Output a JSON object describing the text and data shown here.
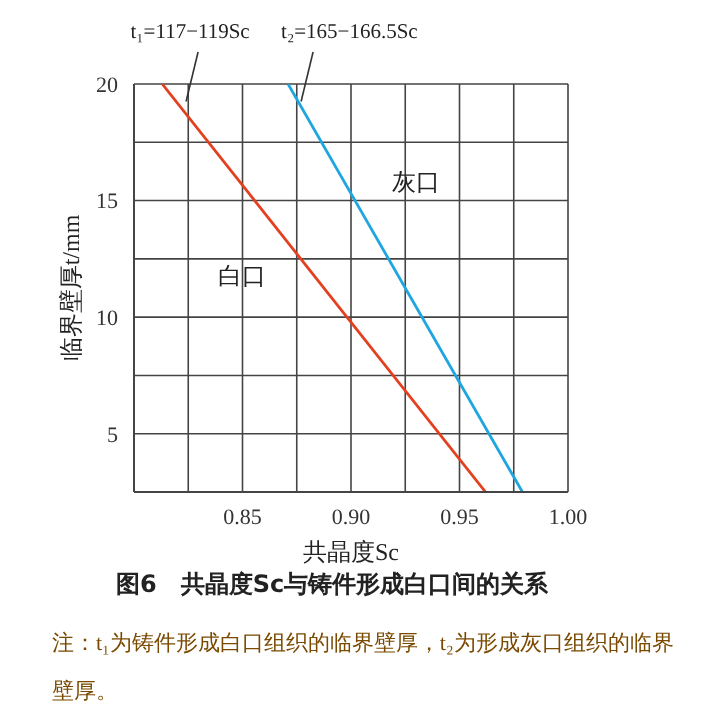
{
  "chart_data": {
    "type": "line",
    "title": "图6　共晶度Sc与铸件形成白口间的关系",
    "xlabel": "共晶度Sc",
    "ylabel": "临界壁厚t/mm",
    "annotations": [
      {
        "text": "t₁=117−119Sc",
        "x": 0.824,
        "y": 19.25
      },
      {
        "text": "t₂=165−166.5Sc",
        "x": 0.877,
        "y": 19.25
      },
      "注：t₁为铸件形成白口组织的临界壁厚，t₂为形成灰口组织的临界壁厚。"
    ],
    "series": [
      {
        "name": "白口",
        "color": "#e2401f",
        "x": [
          0.813,
          0.962
        ],
        "values": [
          20,
          2.5
        ]
      },
      {
        "name": "灰口",
        "color": "#1fa6e0",
        "x": [
          0.871,
          0.979
        ],
        "values": [
          20,
          2.5
        ]
      }
    ],
    "xlim": [
      0.8,
      1.0
    ],
    "xticks": [
      {
        "value": 0.8,
        "label": null
      },
      {
        "value": 0.825,
        "label": null
      },
      {
        "value": 0.85,
        "label": "0.85"
      },
      {
        "value": 0.875,
        "label": null
      },
      {
        "value": 0.9,
        "label": "0.90"
      },
      {
        "value": 0.925,
        "label": null
      },
      {
        "value": 0.95,
        "label": "0.95"
      },
      {
        "value": 0.975,
        "label": null
      },
      {
        "value": 1.0,
        "label": "1.00"
      }
    ],
    "ylim": [
      2.5,
      20
    ],
    "yticks": [
      {
        "value": 2.5,
        "label": null
      },
      5,
      {
        "value": 7.5,
        "label": null
      },
      10,
      {
        "value": 12.5,
        "label": null
      },
      15,
      {
        "value": 17.5,
        "label": null
      },
      20
    ],
    "grid": true,
    "marker": "none",
    "line_style": "solid"
  }
}
